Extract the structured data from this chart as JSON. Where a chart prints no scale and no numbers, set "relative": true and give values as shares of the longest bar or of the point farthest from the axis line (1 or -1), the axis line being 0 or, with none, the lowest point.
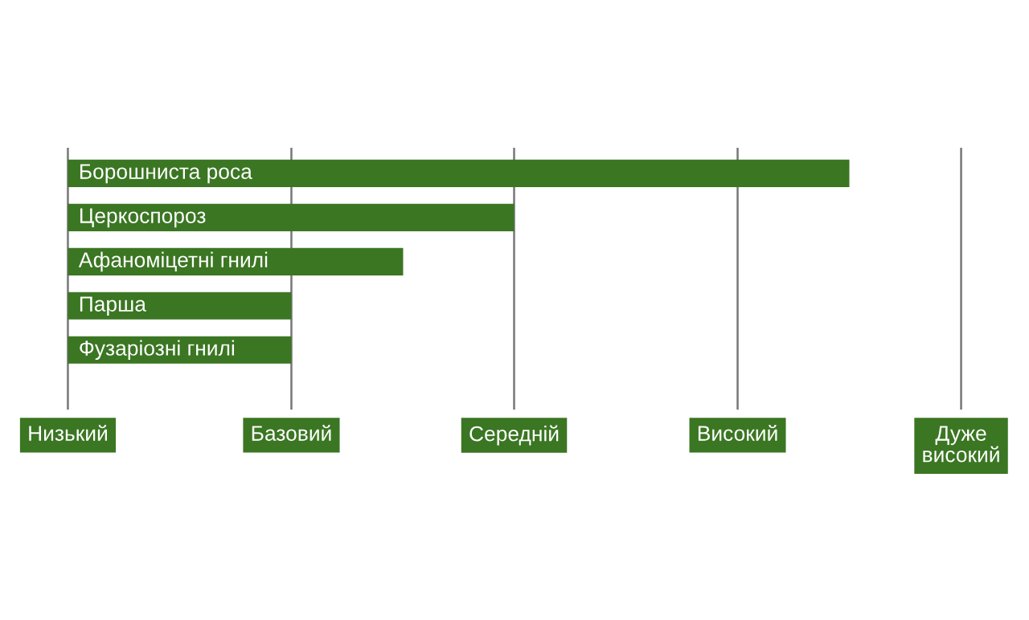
{
  "chart_data": {
    "type": "bar",
    "orientation": "horizontal",
    "relative": true,
    "categories": [
      "Борошниста роса",
      "Церкоспороз",
      "Афаноміцетні гнилі",
      "Парша",
      "Фузаріозні гнилі"
    ],
    "values": [
      1,
      0.571,
      0.429,
      0.286,
      0.286
    ],
    "color": "#3b7623",
    "ref_lines": [
      {
        "axis": "x",
        "value": 0,
        "label": "Низький",
        "color": "#777777"
      },
      {
        "axis": "x",
        "value": 0.286,
        "label": "Базовий",
        "color": "#777777"
      },
      {
        "axis": "x",
        "value": 0.571,
        "label": "Середній",
        "color": "#777777"
      },
      {
        "axis": "x",
        "value": 0.857,
        "label": "Високий",
        "color": "#777777"
      },
      {
        "axis": "x",
        "value": 1.143,
        "label": "Дуже\nвисокий",
        "color": "#777777"
      }
    ]
  }
}
